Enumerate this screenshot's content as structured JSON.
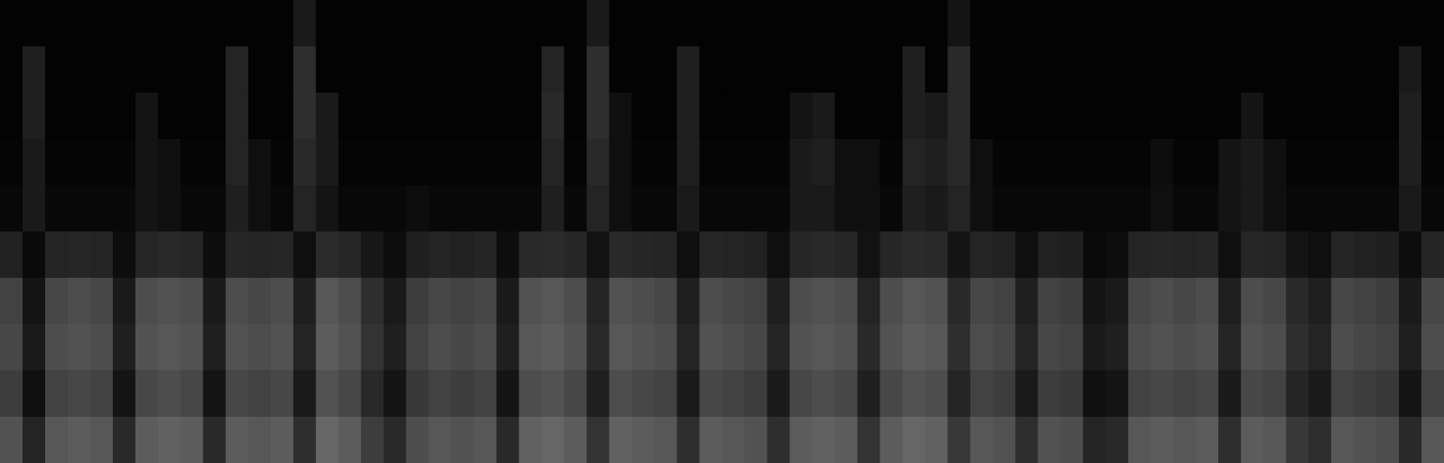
{
  "chart_data": {
    "type": "heatmap",
    "tick_labels": false,
    "zlim": [
      0,
      100
    ],
    "color": "#ffffff",
    "cells": [
      [
        1,
        1,
        1,
        1,
        1,
        1,
        1,
        1,
        1,
        1,
        1,
        1,
        1,
        10,
        1,
        1,
        1,
        1,
        1,
        1,
        1,
        1,
        1,
        1,
        1,
        1,
        10,
        1,
        1,
        1,
        1,
        1,
        1,
        1,
        1,
        1,
        1,
        1,
        1,
        1,
        1,
        1,
        8,
        1,
        1,
        1,
        1,
        1,
        1,
        1,
        1,
        1,
        1,
        1,
        1,
        1,
        1,
        1,
        1,
        1,
        1,
        1,
        1,
        1
      ],
      [
        1,
        12,
        1,
        1,
        1,
        1,
        1,
        1,
        1,
        1,
        14,
        1,
        1,
        18,
        1,
        1,
        1,
        1,
        1,
        1,
        1,
        1,
        1,
        1,
        14,
        1,
        18,
        1,
        1,
        1,
        12,
        1,
        1,
        1,
        1,
        1,
        1,
        1,
        1,
        1,
        12,
        1,
        16,
        1,
        1,
        1,
        1,
        1,
        1,
        1,
        1,
        1,
        1,
        1,
        1,
        1,
        1,
        1,
        1,
        1,
        1,
        1,
        10,
        1
      ],
      [
        1,
        12,
        1,
        1,
        1,
        1,
        8,
        1,
        1,
        1,
        14,
        1,
        1,
        18,
        10,
        1,
        1,
        1,
        1,
        1,
        1,
        1,
        1,
        1,
        16,
        1,
        18,
        6,
        1,
        1,
        12,
        1,
        1,
        1,
        1,
        8,
        10,
        1,
        1,
        1,
        12,
        10,
        16,
        1,
        1,
        1,
        1,
        1,
        1,
        1,
        1,
        1,
        1,
        1,
        1,
        8,
        1,
        1,
        1,
        1,
        1,
        1,
        12,
        1
      ],
      [
        2,
        10,
        2,
        2,
        2,
        2,
        8,
        6,
        2,
        2,
        14,
        6,
        2,
        16,
        10,
        2,
        2,
        2,
        2,
        2,
        2,
        2,
        2,
        2,
        14,
        2,
        16,
        6,
        2,
        2,
        12,
        2,
        2,
        2,
        2,
        10,
        12,
        6,
        6,
        2,
        14,
        12,
        16,
        6,
        2,
        2,
        2,
        2,
        2,
        2,
        2,
        5,
        2,
        2,
        8,
        10,
        6,
        2,
        2,
        2,
        2,
        2,
        12,
        2
      ],
      [
        3,
        10,
        3,
        3,
        3,
        3,
        8,
        6,
        3,
        3,
        12,
        6,
        3,
        14,
        8,
        3,
        3,
        3,
        5,
        3,
        3,
        3,
        3,
        3,
        12,
        3,
        14,
        6,
        3,
        3,
        10,
        3,
        3,
        3,
        3,
        10,
        10,
        6,
        6,
        3,
        12,
        10,
        14,
        6,
        3,
        3,
        3,
        3,
        3,
        3,
        3,
        6,
        3,
        3,
        8,
        10,
        6,
        3,
        3,
        3,
        3,
        3,
        10,
        3
      ],
      [
        13,
        4,
        14,
        15,
        14,
        5,
        15,
        16,
        15,
        5,
        15,
        14,
        15,
        6,
        17,
        15,
        9,
        5,
        12,
        14,
        13,
        14,
        5,
        16,
        17,
        15,
        7,
        16,
        15,
        14,
        6,
        15,
        14,
        13,
        6,
        15,
        16,
        15,
        7,
        15,
        17,
        16,
        8,
        14,
        13,
        6,
        13,
        12,
        4,
        5,
        14,
        15,
        14,
        15,
        6,
        15,
        14,
        8,
        6,
        14,
        13,
        12,
        5,
        14
      ],
      [
        26,
        8,
        28,
        30,
        28,
        10,
        30,
        32,
        30,
        10,
        30,
        28,
        30,
        12,
        34,
        30,
        18,
        10,
        24,
        28,
        26,
        28,
        10,
        32,
        34,
        30,
        14,
        32,
        30,
        28,
        12,
        30,
        28,
        26,
        12,
        30,
        32,
        30,
        14,
        30,
        34,
        32,
        16,
        28,
        26,
        12,
        26,
        24,
        8,
        10,
        28,
        30,
        28,
        30,
        12,
        30,
        28,
        16,
        12,
        28,
        26,
        24,
        10,
        28
      ],
      [
        28,
        10,
        30,
        32,
        30,
        12,
        32,
        34,
        32,
        12,
        32,
        30,
        32,
        14,
        36,
        32,
        20,
        12,
        26,
        30,
        28,
        30,
        12,
        34,
        36,
        32,
        16,
        34,
        32,
        30,
        14,
        32,
        30,
        28,
        14,
        32,
        34,
        32,
        16,
        32,
        36,
        34,
        18,
        30,
        28,
        14,
        28,
        26,
        10,
        12,
        30,
        32,
        30,
        32,
        14,
        32,
        30,
        18,
        14,
        30,
        28,
        26,
        12,
        30
      ],
      [
        24,
        6,
        26,
        28,
        26,
        8,
        28,
        30,
        28,
        8,
        28,
        26,
        28,
        10,
        32,
        28,
        16,
        8,
        22,
        26,
        24,
        26,
        8,
        30,
        32,
        28,
        12,
        30,
        28,
        26,
        10,
        28,
        26,
        24,
        10,
        28,
        30,
        28,
        12,
        28,
        32,
        30,
        14,
        26,
        24,
        10,
        24,
        22,
        6,
        8,
        26,
        28,
        26,
        28,
        10,
        28,
        26,
        14,
        10,
        26,
        24,
        22,
        8,
        26
      ],
      [
        32,
        14,
        34,
        36,
        34,
        16,
        36,
        38,
        36,
        16,
        36,
        34,
        36,
        18,
        40,
        36,
        24,
        16,
        30,
        34,
        32,
        34,
        16,
        38,
        40,
        36,
        20,
        38,
        36,
        34,
        18,
        36,
        34,
        32,
        18,
        36,
        38,
        36,
        20,
        36,
        40,
        38,
        22,
        34,
        32,
        18,
        32,
        30,
        14,
        16,
        34,
        36,
        34,
        36,
        18,
        36,
        34,
        22,
        18,
        34,
        32,
        30,
        16,
        34
      ]
    ]
  }
}
